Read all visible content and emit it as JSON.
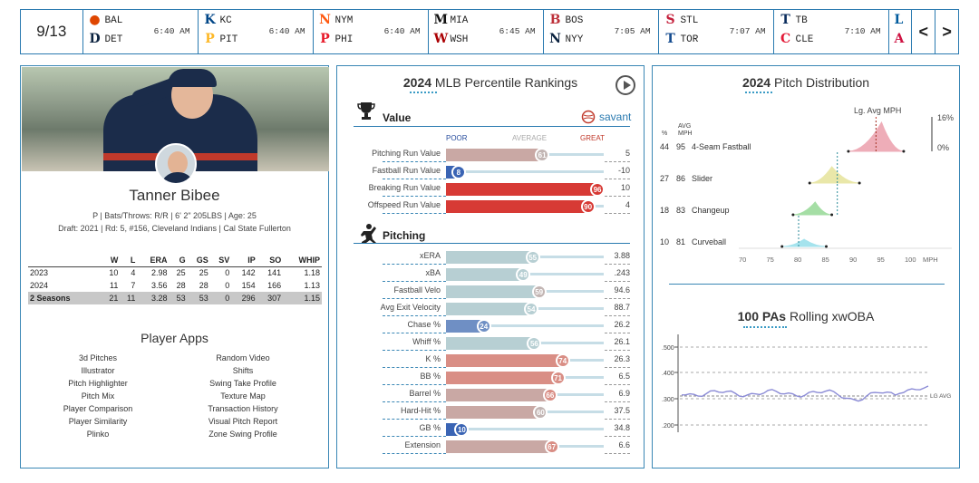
{
  "topbar": {
    "date": "9/13",
    "games": [
      {
        "away": "BAL",
        "home": "DET",
        "time": "6:40 AM",
        "ac": "#df4601",
        "hc": "#0c2340",
        "ag": "●",
        "hg": "D"
      },
      {
        "away": "KC",
        "home": "PIT",
        "time": "6:40 AM",
        "ac": "#004687",
        "hc": "#fdb827",
        "ag": "K",
        "hg": "P"
      },
      {
        "away": "NYM",
        "home": "PHI",
        "time": "6:40 AM",
        "ac": "#ff5910",
        "hc": "#e81828",
        "ag": "N",
        "hg": "P"
      },
      {
        "away": "MIA",
        "home": "WSH",
        "time": "6:45 AM",
        "ac": "#111111",
        "hc": "#ab0003",
        "ag": "M",
        "hg": "W"
      },
      {
        "away": "BOS",
        "home": "NYY",
        "time": "7:05 AM",
        "ac": "#bd3039",
        "hc": "#0c2340",
        "ag": "B",
        "hg": "N"
      },
      {
        "away": "STL",
        "home": "TOR",
        "time": "7:07 AM",
        "ac": "#c41e3a",
        "hc": "#134a8e",
        "ag": "S",
        "hg": "T"
      },
      {
        "away": "TB",
        "home": "CLE",
        "time": "7:10 AM",
        "ac": "#092c5c",
        "hc": "#e31937",
        "ag": "T",
        "hg": "C"
      }
    ],
    "last": {
      "ag": "L",
      "hg": "A",
      "ac": "#005a9c",
      "hc": "#ce1141"
    },
    "prev": "<",
    "next": ">"
  },
  "player": {
    "name": "Tanner Bibee",
    "line1": "P | Bats/Throws: R/R | 6' 2\" 205LBS | Age: 25",
    "line2": "Draft: 2021 | Rd: 5, #156, Cleveland Indians | Cal State Fullerton",
    "headers": [
      "",
      "W",
      "L",
      "ERA",
      "G",
      "GS",
      "SV",
      "IP",
      "SO",
      "WHIP"
    ],
    "rows": [
      [
        "2023",
        "10",
        "4",
        "2.98",
        "25",
        "25",
        "0",
        "142",
        "141",
        "1.18"
      ],
      [
        "2024",
        "11",
        "7",
        "3.56",
        "28",
        "28",
        "0",
        "154",
        "166",
        "1.13"
      ],
      [
        "2 Seasons",
        "21",
        "11",
        "3.28",
        "53",
        "53",
        "0",
        "296",
        "307",
        "1.15"
      ]
    ]
  },
  "apps": {
    "title": "Player Apps",
    "left": [
      "3d Pitches",
      "Illustrator",
      "Pitch Highlighter",
      "Pitch Mix",
      "Player Comparison",
      "Player Similarity",
      "Plinko"
    ],
    "right": [
      "Random Video",
      "Shifts",
      "Swing Take Profile",
      "Texture Map",
      "Transaction History",
      "Visual Pitch Report",
      "Zone Swing Profile"
    ]
  },
  "percentile": {
    "year": "2024",
    "title": "MLB Percentile Rankings",
    "value_label": "Value",
    "savant": "savant",
    "poor": "POOR",
    "average": "AVERAGE",
    "great": "GREAT",
    "pitching_label": "Pitching",
    "value_rows": [
      {
        "label": "Pitching Run Value",
        "pct": 61,
        "val": "5"
      },
      {
        "label": "Fastball Run Value",
        "pct": 8,
        "val": "-10"
      },
      {
        "label": "Breaking Run Value",
        "pct": 96,
        "val": "10"
      },
      {
        "label": "Offspeed Run Value",
        "pct": 90,
        "val": "4"
      }
    ],
    "pitching_rows": [
      {
        "label": "xERA",
        "pct": 55,
        "val": "3.88"
      },
      {
        "label": "xBA",
        "pct": 49,
        "val": ".243"
      },
      {
        "label": "Fastball Velo",
        "pct": 59,
        "val": "94.6"
      },
      {
        "label": "Avg Exit Velocity",
        "pct": 54,
        "val": "88.7"
      },
      {
        "label": "Chase %",
        "pct": 24,
        "val": "26.2"
      },
      {
        "label": "Whiff %",
        "pct": 56,
        "val": "26.1"
      },
      {
        "label": "K %",
        "pct": 74,
        "val": "26.3"
      },
      {
        "label": "BB %",
        "pct": 71,
        "val": "6.5"
      },
      {
        "label": "Barrel %",
        "pct": 66,
        "val": "6.9"
      },
      {
        "label": "Hard-Hit %",
        "pct": 60,
        "val": "37.5"
      },
      {
        "label": "GB %",
        "pct": 10,
        "val": "34.8"
      },
      {
        "label": "Extension",
        "pct": 67,
        "val": "6.6"
      }
    ]
  },
  "pitchdist": {
    "year": "2024",
    "title": "Pitch Distribution",
    "lg_label": "Lg. Avg MPH",
    "col_pct": "%",
    "col_avg": "AVG",
    "col_mph": "MPH",
    "pct_top": "16%",
    "pct_bottom": "0%",
    "pitches": [
      {
        "pct": "44",
        "mph": "95",
        "name": "4-Seam Fastball",
        "avg": 95,
        "lg": 94,
        "lo": 89,
        "hi": 99,
        "color": "#e88b9b"
      },
      {
        "pct": "27",
        "mph": "86",
        "name": "Slider",
        "avg": 86,
        "lg": 87,
        "lo": 82,
        "hi": 91,
        "color": "#e0dd86"
      },
      {
        "pct": "18",
        "mph": "83",
        "name": "Changeup",
        "avg": 83,
        "lg": 87,
        "lo": 79,
        "hi": 86,
        "color": "#7fd17f"
      },
      {
        "pct": "10",
        "mph": "81",
        "name": "Curveball",
        "avg": 81,
        "lg": 80,
        "lo": 77,
        "hi": 85,
        "color": "#7fd8e6"
      }
    ],
    "xticks": [
      "70",
      "75",
      "80",
      "85",
      "90",
      "95",
      "100"
    ],
    "xunit": "MPH"
  },
  "xwoba": {
    "bold": "100 PAs",
    "title": "Rolling xwOBA",
    "yticks": [
      ".500",
      ".400",
      ".300",
      ".200"
    ],
    "lg": "LG AVG"
  }
}
